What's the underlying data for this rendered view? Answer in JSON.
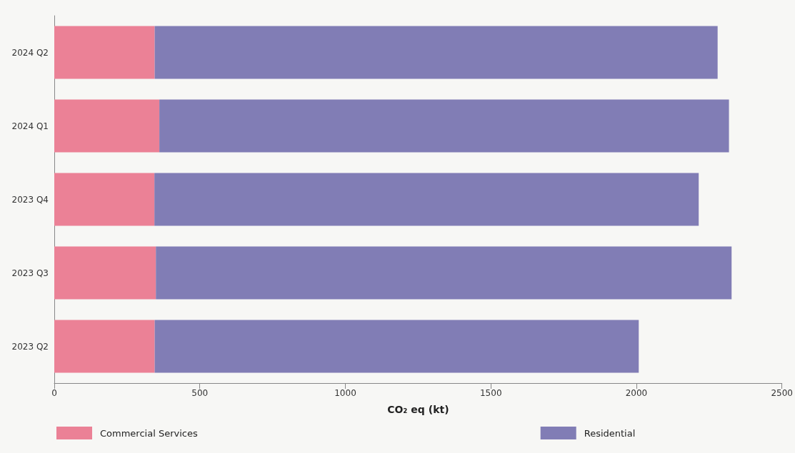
{
  "chart_data": {
    "type": "bar",
    "orientation": "horizontal",
    "stacked": true,
    "categories": [
      "2024 Q2",
      "2024 Q1",
      "2023 Q4",
      "2023 Q3",
      "2023 Q2"
    ],
    "series": [
      {
        "name": "Commercial Services",
        "color": "#eb8196",
        "values": [
          345,
          361,
          344,
          349,
          345
        ]
      },
      {
        "name": "Residential",
        "color": "#817db5",
        "values": [
          1934,
          1957,
          1870,
          1978,
          1663
        ]
      }
    ],
    "xlabel": "CO₂ eq (kt)",
    "xlim": [
      0,
      2500
    ],
    "xticks": [
      0,
      500,
      1000,
      1500,
      2000,
      2500
    ],
    "grid": false,
    "legend": "bottom"
  }
}
